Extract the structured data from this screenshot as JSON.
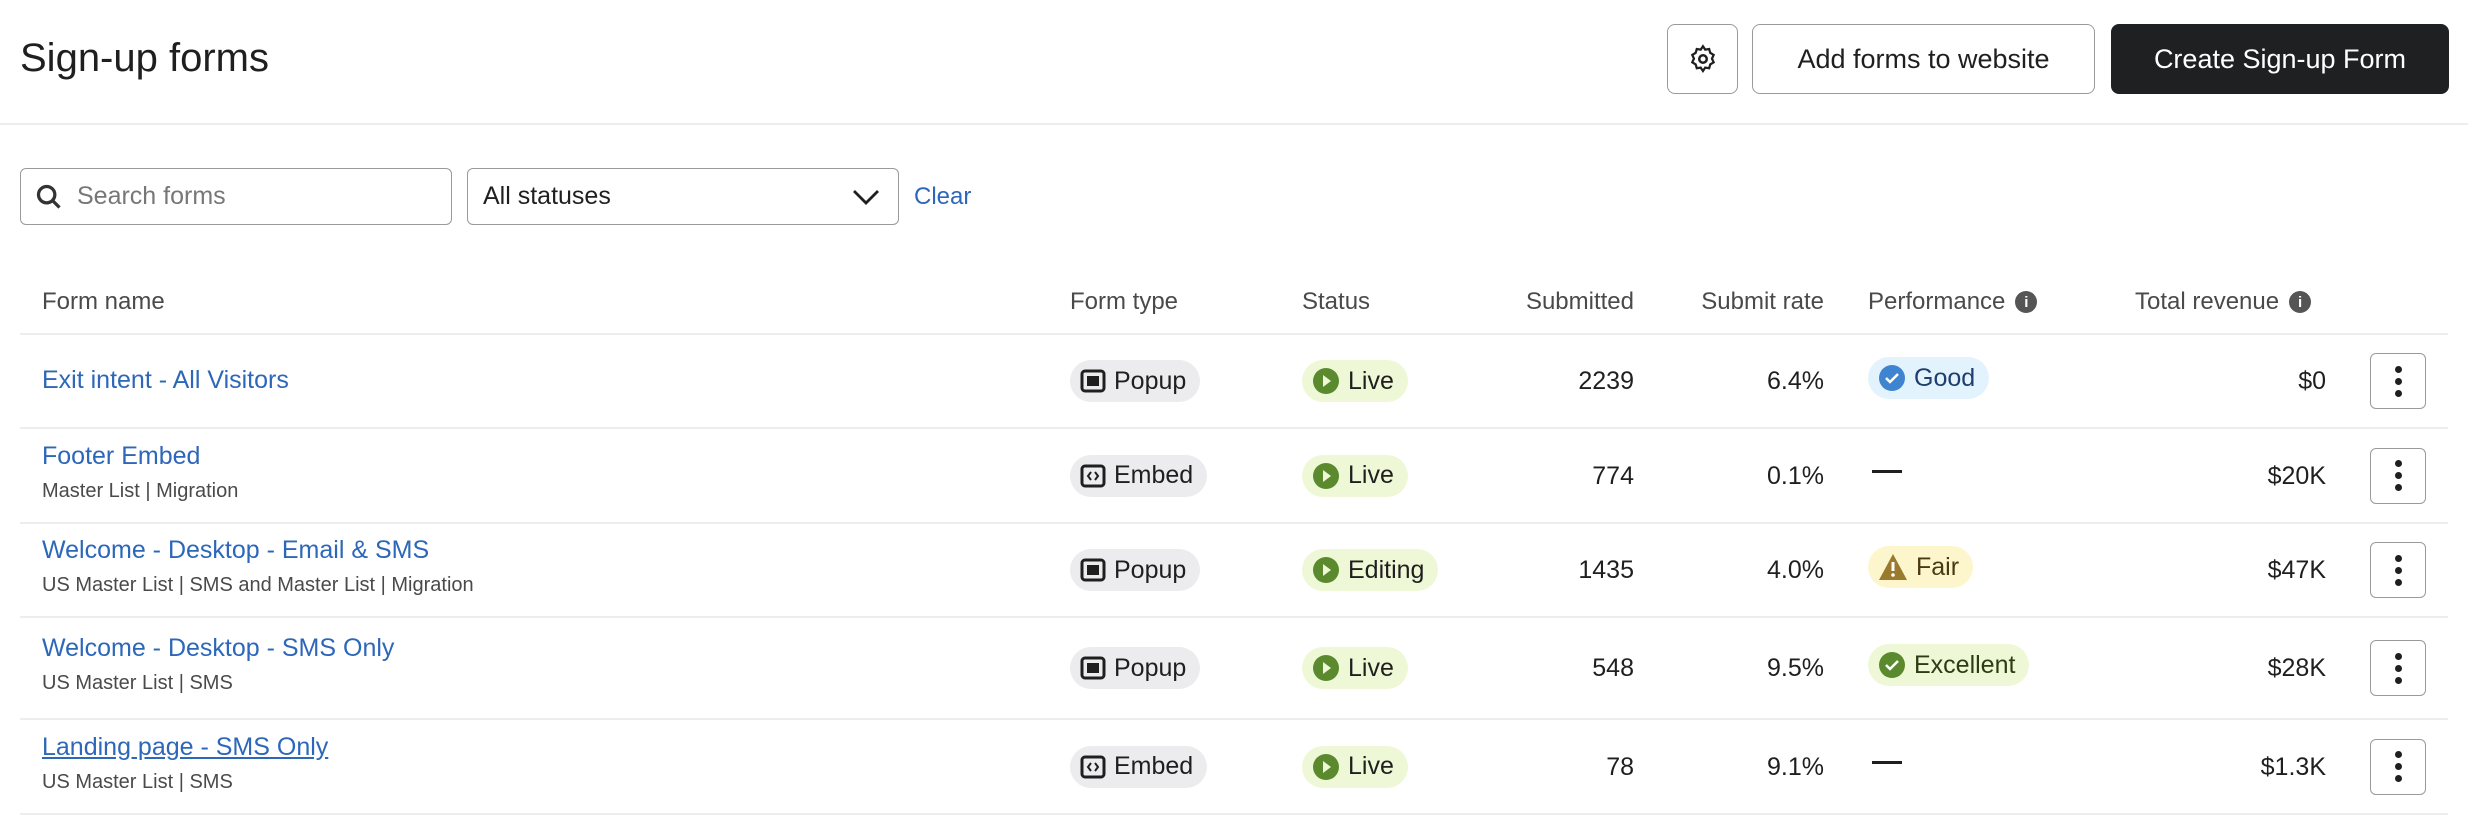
{
  "header": {
    "title": "Sign-up forms",
    "settings_icon": "gear-icon",
    "add_forms_label": "Add forms to website",
    "create_label": "Create Sign-up Form"
  },
  "filters": {
    "search_placeholder": "Search forms",
    "status_value": "All statuses",
    "clear_label": "Clear"
  },
  "table": {
    "columns": {
      "name": "Form name",
      "type": "Form type",
      "status": "Status",
      "submitted": "Submitted",
      "rate": "Submit rate",
      "performance": "Performance",
      "revenue": "Total revenue"
    },
    "rows": [
      {
        "name": "Exit intent - All Visitors",
        "lists": "",
        "type": "Popup",
        "status": "Live",
        "submitted": "2239",
        "rate": "6.4%",
        "performance": "Good",
        "revenue": "$0"
      },
      {
        "name": "Footer Embed",
        "lists": "Master List | Migration",
        "type": "Embed",
        "status": "Live",
        "submitted": "774",
        "rate": "0.1%",
        "performance": "",
        "revenue": "$20K"
      },
      {
        "name": "Welcome - Desktop - Email & SMS",
        "lists": "US Master List | SMS and Master List | Migration",
        "type": "Popup",
        "status": "Editing",
        "submitted": "1435",
        "rate": "4.0%",
        "performance": "Fair",
        "revenue": "$47K"
      },
      {
        "name": "Welcome - Desktop - SMS Only",
        "lists": "US Master List | SMS",
        "type": "Popup",
        "status": "Live",
        "submitted": "548",
        "rate": "9.5%",
        "performance": "Excellent",
        "revenue": "$28K"
      },
      {
        "name": "Landing page - SMS Only",
        "lists": "US Master List | SMS",
        "type": "Embed",
        "status": "Live",
        "submitted": "78",
        "rate": "9.1%",
        "performance": "",
        "revenue": "$1.3K"
      }
    ]
  },
  "colors": {
    "link": "#2d67b9",
    "primary_button": "#1f2022",
    "live_badge": "#eef8d6",
    "live_icon": "#5b8a2e",
    "good": "#3f84d0",
    "fair": "#9a7a2c"
  }
}
